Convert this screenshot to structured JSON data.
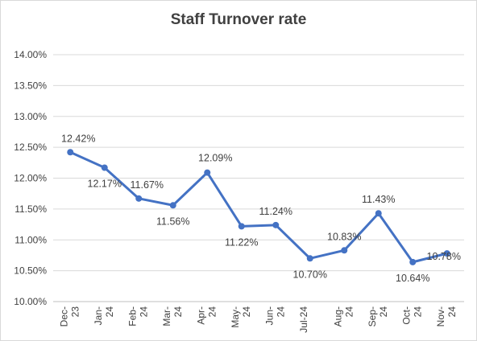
{
  "chart_data": {
    "type": "line",
    "title": "Staff Turnover rate",
    "categories": [
      [
        "Dec-",
        "23"
      ],
      [
        "Jan-",
        "24"
      ],
      [
        "Feb-",
        "24"
      ],
      [
        "Mar-",
        "24"
      ],
      [
        "Apr-",
        "24"
      ],
      [
        "May-",
        "24"
      ],
      [
        "Jun-",
        "24"
      ],
      [
        "Jul-24",
        ""
      ],
      [
        "Aug-",
        "24"
      ],
      [
        "Sep-",
        "24"
      ],
      [
        "Oct-",
        "24"
      ],
      [
        "Nov-",
        "24"
      ]
    ],
    "series": [
      {
        "values": [
          12.42,
          12.17,
          11.67,
          11.56,
          12.09,
          11.22,
          11.24,
          10.7,
          10.83,
          11.43,
          10.64,
          10.78
        ],
        "labels": [
          "12.42%",
          "12.17%",
          "11.67%",
          "11.56%",
          "12.09%",
          "11.22%",
          "11.24%",
          "10.70%",
          "10.83%",
          "11.43%",
          "10.64%",
          "10.78%"
        ],
        "color": "#4472c4"
      }
    ],
    "yticks": [
      "10.00%",
      "10.50%",
      "11.00%",
      "11.50%",
      "12.00%",
      "12.50%",
      "13.00%",
      "13.50%",
      "14.00%"
    ],
    "ylim": [
      10.0,
      14.0
    ],
    "grid": true,
    "gridColor": "#d9d9d9",
    "legend": "none"
  }
}
